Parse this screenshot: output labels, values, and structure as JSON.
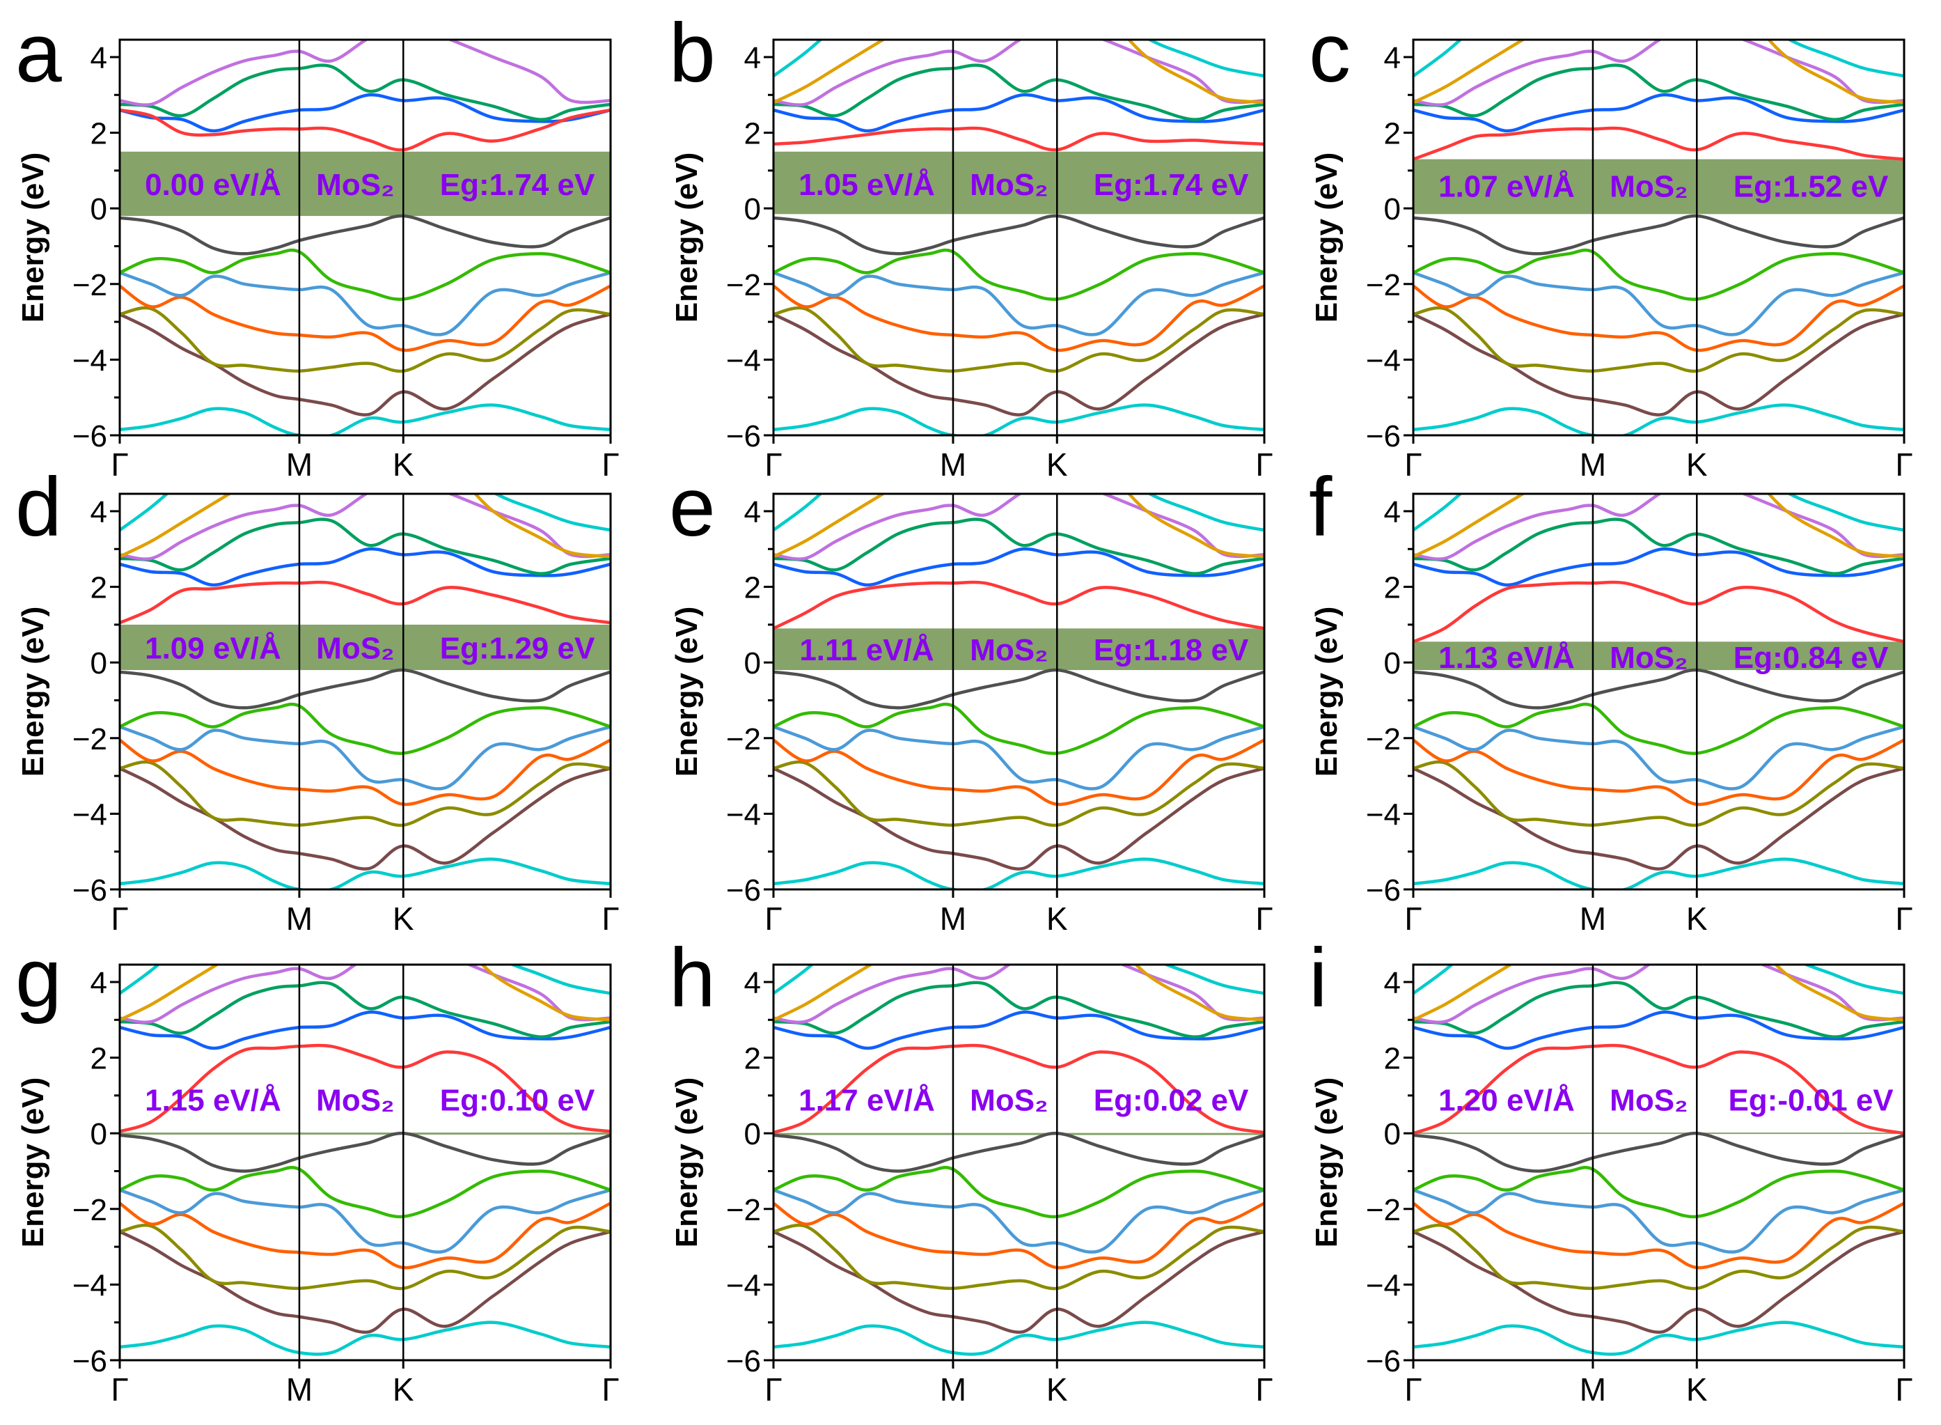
{
  "chart_data": {
    "type": "line",
    "title": "",
    "ylabel": "Energy (eV)",
    "ylim": [
      -6,
      4.46
    ],
    "yticks": [
      -6,
      -4,
      -2,
      0,
      2,
      4
    ],
    "ytick_labels": [
      "−6",
      "−4",
      "−2",
      "0",
      "2",
      "4"
    ],
    "kpath_labels": [
      "Γ",
      "M",
      "K",
      "Γ"
    ],
    "kpath_positions": [
      0,
      0.577,
      0.911,
      1.577
    ],
    "k": [
      0,
      0.1,
      0.2,
      0.3,
      0.4,
      0.5,
      0.577,
      0.68,
      0.8,
      0.911,
      1.05,
      1.2,
      1.35,
      1.45,
      1.577
    ],
    "gap_box_color": "#86a36a",
    "label_color": "#8a00f0",
    "bands": [
      {
        "name": "valence-6",
        "color": "#00cccc",
        "values": [
          -5.85,
          -5.75,
          -5.55,
          -5.3,
          -5.4,
          -5.8,
          -6.0,
          -6.0,
          -5.55,
          -5.65,
          -5.4,
          -5.2,
          -5.5,
          -5.75,
          -5.85
        ]
      },
      {
        "name": "valence-5",
        "color": "#7a4a4a",
        "values": [
          -2.8,
          -3.2,
          -3.7,
          -4.1,
          -4.6,
          -4.95,
          -5.05,
          -5.2,
          -5.45,
          -4.85,
          -5.3,
          -4.5,
          -3.6,
          -3.1,
          -2.8
        ]
      },
      {
        "name": "valence-4",
        "color": "#8c8c00",
        "values": [
          -2.8,
          -2.65,
          -3.3,
          -4.1,
          -4.15,
          -4.25,
          -4.3,
          -4.2,
          -4.1,
          -4.3,
          -3.85,
          -4.0,
          -3.2,
          -2.7,
          -2.8
        ]
      },
      {
        "name": "valence-3",
        "color": "#ff6000",
        "values": [
          -2.05,
          -2.6,
          -2.35,
          -2.8,
          -3.1,
          -3.3,
          -3.35,
          -3.4,
          -3.3,
          -3.75,
          -3.5,
          -3.55,
          -2.5,
          -2.55,
          -2.05
        ]
      },
      {
        "name": "valence-2",
        "color": "#4a9ad8",
        "values": [
          -1.7,
          -2.0,
          -2.3,
          -1.8,
          -2.0,
          -2.1,
          -2.15,
          -2.15,
          -3.1,
          -3.1,
          -3.3,
          -2.2,
          -2.3,
          -2.0,
          -1.7
        ]
      },
      {
        "name": "valence-1",
        "color": "#33bb00",
        "values": [
          -1.7,
          -1.35,
          -1.4,
          -1.7,
          -1.35,
          -1.2,
          -1.15,
          -1.9,
          -2.2,
          -2.4,
          -2.0,
          -1.35,
          -1.2,
          -1.35,
          -1.7
        ]
      },
      {
        "name": "valence-top",
        "color": "#505050",
        "values": [
          -0.25,
          -0.35,
          -0.6,
          -1.05,
          -1.2,
          -1.05,
          -0.85,
          -0.65,
          -0.45,
          -0.2,
          -0.55,
          -0.9,
          -1.0,
          -0.6,
          -0.25
        ]
      },
      {
        "name": "conduction-2",
        "color": "#1060ff",
        "values": [
          2.6,
          2.4,
          2.35,
          2.05,
          2.3,
          2.5,
          2.6,
          2.65,
          3.0,
          2.85,
          2.9,
          2.4,
          2.3,
          2.35,
          2.6
        ]
      },
      {
        "name": "conduction-3",
        "color": "#00a060",
        "values": [
          2.75,
          2.7,
          2.45,
          2.9,
          3.4,
          3.65,
          3.7,
          3.75,
          3.1,
          3.4,
          3.0,
          2.7,
          2.35,
          2.6,
          2.75
        ]
      },
      {
        "name": "conduction-4",
        "color": "#c070e0",
        "values": [
          2.85,
          2.75,
          3.2,
          3.6,
          3.9,
          4.05,
          4.15,
          3.9,
          4.5,
          4.9,
          4.5,
          4.0,
          3.5,
          2.85,
          2.85
        ]
      }
    ],
    "extra_bands": [
      {
        "name": "conduction-5",
        "color": "#e0a000",
        "values": [
          2.8,
          3.2,
          3.7,
          4.2,
          4.7,
          5.2,
          5.5,
          5.5,
          5.5,
          5.5,
          5.2,
          4.0,
          3.3,
          2.9,
          2.8
        ]
      },
      {
        "name": "conduction-6",
        "color": "#00cccc",
        "values": [
          3.5,
          4.1,
          4.8,
          5.4,
          5.8,
          6,
          6,
          6,
          6,
          6,
          5.4,
          4.5,
          4.0,
          3.7,
          3.5
        ]
      }
    ],
    "panels": [
      {
        "letter": "a",
        "field": "0.00 eV/Å",
        "material": "MoS₂",
        "gap": "Eg:1.74 eV",
        "box": [
          -0.2,
          1.5
        ],
        "offset": 0,
        "extra": false,
        "label_y": 0.65,
        "cb1": [
          2.6,
          2.45,
          2.0,
          1.95,
          2.05,
          2.1,
          2.1,
          2.1,
          1.8,
          1.55,
          1.98,
          1.78,
          2.1,
          2.4,
          2.6
        ]
      },
      {
        "letter": "b",
        "field": "1.05 eV/Å",
        "material": "MoS₂",
        "gap": "Eg:1.74 eV",
        "box": [
          -0.15,
          1.5
        ],
        "offset": 0,
        "extra": true,
        "label_y": 0.65,
        "cb1": [
          1.7,
          1.75,
          1.85,
          1.95,
          2.05,
          2.1,
          2.1,
          2.1,
          1.8,
          1.55,
          1.98,
          1.78,
          1.8,
          1.75,
          1.7
        ]
      },
      {
        "letter": "c",
        "field": "1.07 eV/Å",
        "material": "MoS₂",
        "gap": "Eg:1.52 eV",
        "box": [
          -0.15,
          1.3
        ],
        "offset": 0,
        "extra": true,
        "label_y": 0.6,
        "cb1": [
          1.3,
          1.6,
          1.9,
          1.95,
          2.05,
          2.1,
          2.1,
          2.1,
          1.8,
          1.55,
          1.98,
          1.78,
          1.6,
          1.4,
          1.3
        ]
      },
      {
        "letter": "d",
        "field": "1.09 eV/Å",
        "material": "MoS₂",
        "gap": "Eg:1.29 eV",
        "box": [
          -0.2,
          1.0
        ],
        "offset": 0,
        "extra": true,
        "label_y": 0.4,
        "cb1": [
          1.05,
          1.4,
          1.9,
          1.95,
          2.05,
          2.1,
          2.1,
          2.1,
          1.8,
          1.55,
          1.98,
          1.78,
          1.45,
          1.2,
          1.05
        ]
      },
      {
        "letter": "e",
        "field": "1.11 eV/Å",
        "material": "MoS₂",
        "gap": "Eg:1.18 eV",
        "box": [
          -0.2,
          0.9
        ],
        "offset": 0,
        "extra": true,
        "label_y": 0.35,
        "cb1": [
          0.9,
          1.3,
          1.75,
          1.95,
          2.05,
          2.1,
          2.1,
          2.1,
          1.8,
          1.55,
          1.98,
          1.78,
          1.35,
          1.1,
          0.9
        ]
      },
      {
        "letter": "f",
        "field": "1.13 eV/Å",
        "material": "MoS₂",
        "gap": "Eg:0.84 eV",
        "box": [
          -0.2,
          0.55
        ],
        "offset": 0,
        "extra": true,
        "label_y": 0.15,
        "cb1": [
          0.55,
          0.9,
          1.5,
          1.95,
          2.05,
          2.1,
          2.1,
          2.1,
          1.8,
          1.55,
          1.98,
          1.78,
          1.1,
          0.8,
          0.55
        ]
      },
      {
        "letter": "g",
        "field": "1.15 eV/Å",
        "material": "MoS₂",
        "gap": "Eg:0.10 eV",
        "box": [
          -0.02,
          0.02
        ],
        "offset": 0.2,
        "extra": true,
        "label_y": 0.9,
        "cb1": [
          0.05,
          0.3,
          0.95,
          1.7,
          2.2,
          2.25,
          2.3,
          2.3,
          2.0,
          1.75,
          2.15,
          1.8,
          0.7,
          0.2,
          0.05
        ]
      },
      {
        "letter": "h",
        "field": "1.17 eV/Å",
        "material": "MoS₂",
        "gap": "Eg:0.02 eV",
        "box": [
          -0.01,
          0.01
        ],
        "offset": 0.2,
        "extra": true,
        "label_y": 0.9,
        "cb1": [
          0.02,
          0.3,
          0.95,
          1.7,
          2.2,
          2.25,
          2.3,
          2.3,
          2.0,
          1.75,
          2.15,
          1.8,
          0.7,
          0.2,
          0.02
        ]
      },
      {
        "letter": "i",
        "field": "1.20 eV/Å",
        "material": "MoS₂",
        "gap": "Eg:-0.01 eV",
        "box": null,
        "offset": 0.2,
        "extra": true,
        "label_y": 0.9,
        "cb1": [
          0.0,
          0.3,
          0.95,
          1.7,
          2.2,
          2.25,
          2.3,
          2.3,
          2.0,
          1.75,
          2.15,
          1.8,
          0.7,
          0.2,
          0.0
        ]
      }
    ]
  }
}
